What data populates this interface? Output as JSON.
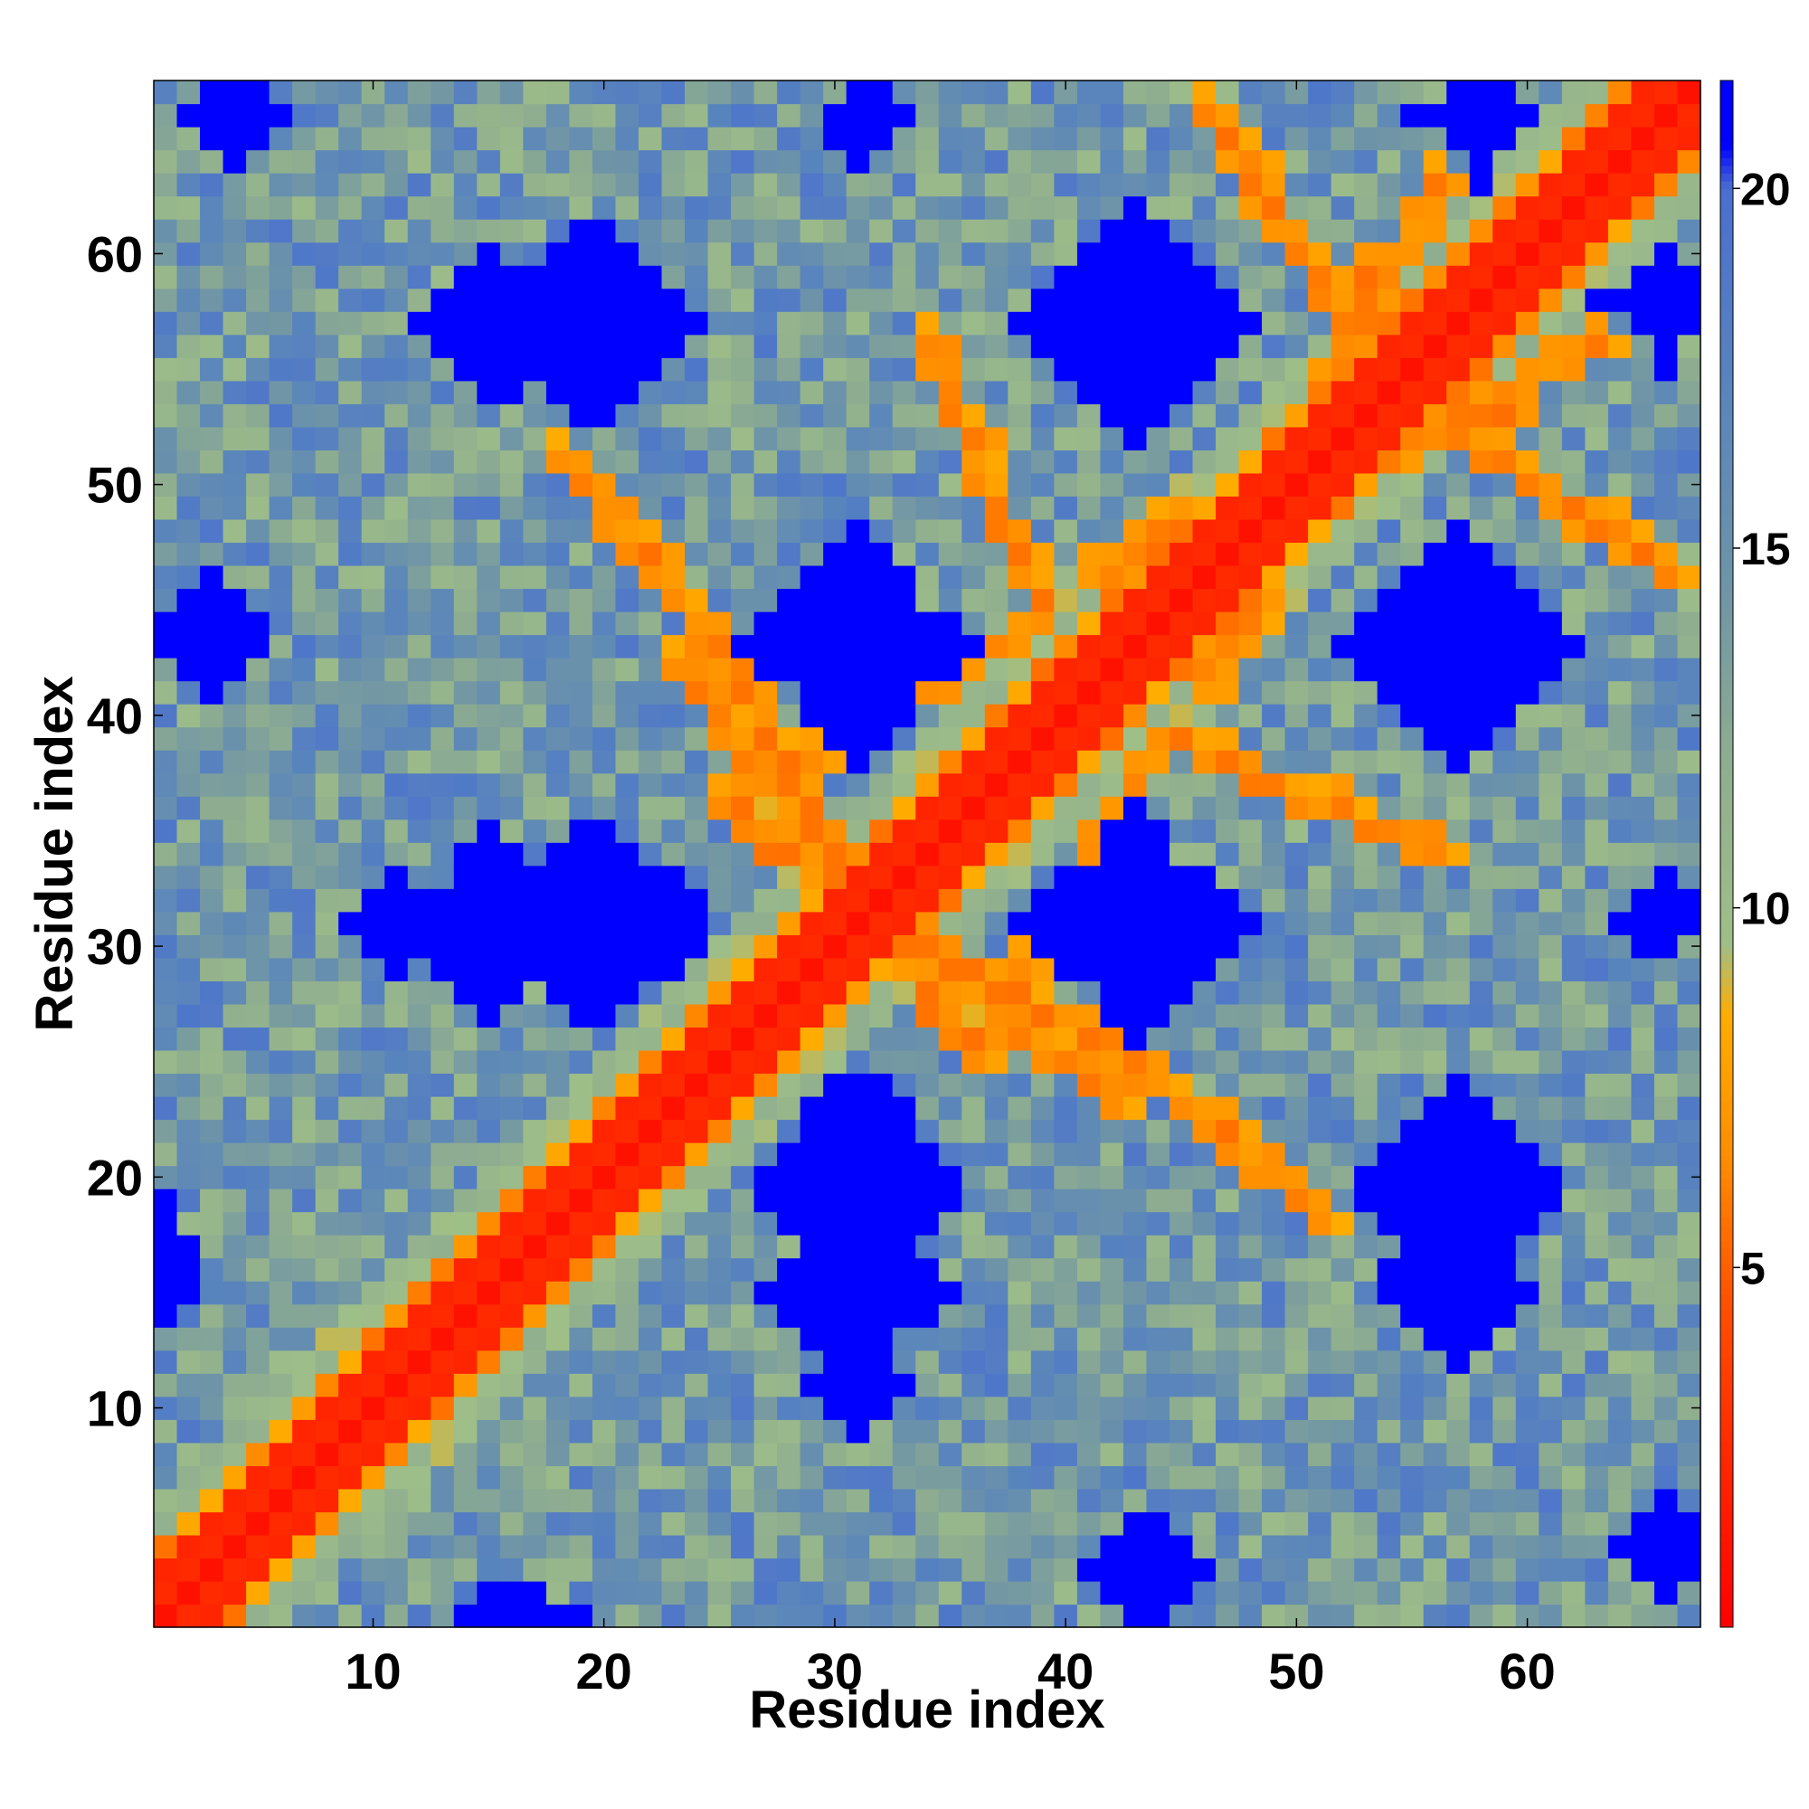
{
  "chart_data": {
    "type": "heatmap",
    "title": "",
    "xlabel": "Residue index",
    "ylabel": "Residue index",
    "xlim": [
      0.5,
      67.5
    ],
    "ylim": [
      0.5,
      67.5
    ],
    "n": 67,
    "x_ticks": [
      10,
      20,
      30,
      40,
      50,
      60
    ],
    "x_tick_labels": [
      "10",
      "20",
      "30",
      "40",
      "50",
      "60"
    ],
    "y_ticks": [
      10,
      20,
      30,
      40,
      50,
      60
    ],
    "y_tick_labels": [
      "10",
      "20",
      "30",
      "40",
      "50",
      "60"
    ],
    "colorbar": {
      "min": 0,
      "max": 21.5,
      "ticks": [
        5,
        10,
        15,
        20
      ],
      "tick_labels": [
        "5",
        "10",
        "15",
        "20"
      ],
      "placement": "right",
      "color_stops": [
        {
          "value": 0,
          "color": "#ff0000"
        },
        {
          "value": 2.5,
          "color": "#ff2a00"
        },
        {
          "value": 4.5,
          "color": "#ff5000"
        },
        {
          "value": 6.5,
          "color": "#ff8c00"
        },
        {
          "value": 8.5,
          "color": "#ffad00"
        },
        {
          "value": 9.5,
          "color": "#9fbf88"
        },
        {
          "value": 12.0,
          "color": "#8fae8f"
        },
        {
          "value": 14.5,
          "color": "#6e94a8"
        },
        {
          "value": 17.0,
          "color": "#5a86bb"
        },
        {
          "value": 20.0,
          "color": "#4a6fd0"
        },
        {
          "value": 20.6,
          "color": "#0000ff"
        }
      ]
    },
    "diagonal_band": {
      "core_halfwidth": 1,
      "band_halfwidth": 3
    },
    "cross_strands": [
      {
        "name": "",
        "pairs": [
          [
            23,
            42
          ],
          [
            36,
            25
          ],
          [
            44,
            39
          ],
          [
            48,
            37
          ],
          [
            56,
            34
          ]
        ]
      },
      {
        "name": "",
        "pairs": [
          [
            33,
            30
          ],
          [
            41,
            26
          ],
          [
            51,
            18
          ]
        ]
      },
      {
        "name": "",
        "pairs": [
          [
            46,
            41
          ],
          [
            48,
            45
          ],
          [
            53,
            58
          ],
          [
            56,
            63
          ]
        ]
      },
      {
        "name": "",
        "pairs": [
          [
            56,
            53
          ],
          [
            61,
            49
          ],
          [
            66,
            46
          ]
        ]
      }
    ],
    "far_clusters": [
      {
        "center": [
          31,
          19
        ],
        "radius": 3.2
      },
      {
        "center": [
          31,
          15
        ],
        "radius": 2.6
      },
      {
        "center": [
          31,
          11
        ],
        "radius": 1.6
      },
      {
        "center": [
          31,
          43
        ],
        "radius": 3.6
      },
      {
        "center": [
          20,
          31
        ],
        "radius": 3.2
      },
      {
        "center": [
          15,
          31
        ],
        "radius": 2.6
      },
      {
        "center": [
          11,
          31
        ],
        "radius": 1.4
      },
      {
        "center": [
          43,
          31
        ],
        "radius": 3.6
      },
      {
        "center": [
          43,
          57
        ],
        "radius": 3.6
      },
      {
        "center": [
          57,
          43
        ],
        "radius": 3.6
      },
      {
        "center": [
          20,
          57
        ],
        "radius": 3.2
      },
      {
        "center": [
          15,
          57
        ],
        "radius": 2.4
      },
      {
        "center": [
          57,
          19
        ],
        "radius": 3.0
      },
      {
        "center": [
          57,
          15
        ],
        "radius": 2.2
      },
      {
        "center": [
          58,
          66
        ],
        "radius": 1.8
      },
      {
        "center": [
          66,
          58
        ],
        "radius": 1.6
      },
      {
        "center": [
          43,
          3
        ],
        "radius": 1.6
      },
      {
        "center": [
          3,
          44
        ],
        "radius": 1.5
      },
      {
        "center": [
          16,
          1
        ],
        "radius": 1.3
      },
      {
        "center": [
          1,
          17
        ],
        "radius": 1.2
      },
      {
        "center": [
          4,
          66
        ],
        "radius": 1.6
      },
      {
        "center": [
          66,
          4
        ],
        "radius": 1.4
      },
      {
        "center": [
          66,
          31
        ],
        "radius": 1.3
      },
      {
        "center": [
          31,
          66
        ],
        "radius": 1.2
      }
    ],
    "noise_seed": 17
  }
}
